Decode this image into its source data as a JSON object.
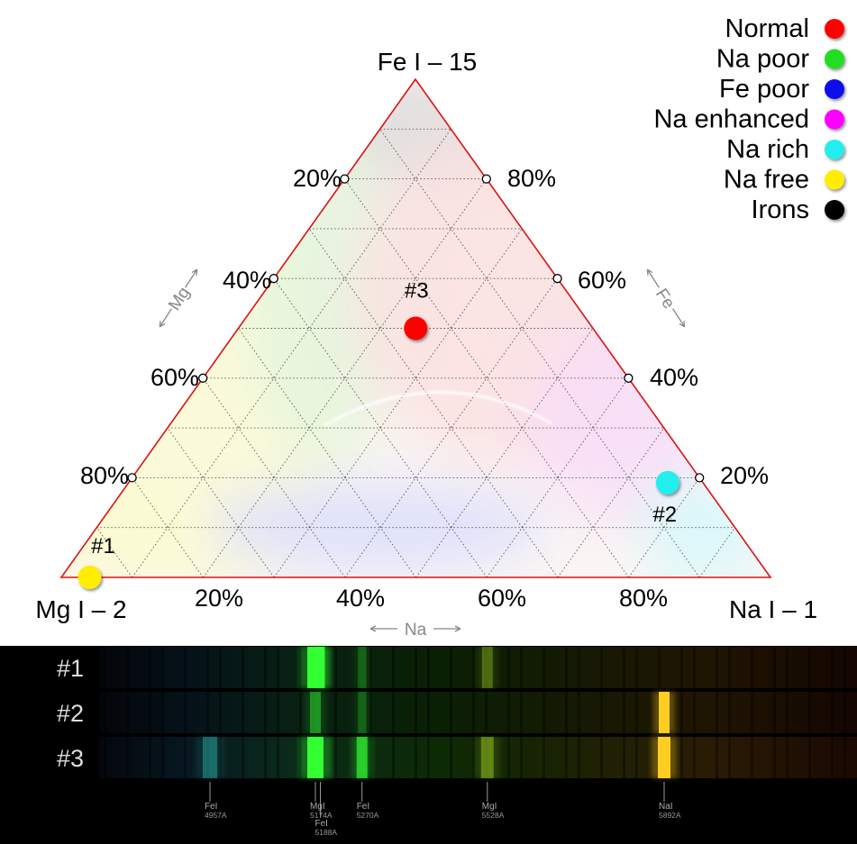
{
  "diagram": {
    "vertices": {
      "top": "Fe I – 15",
      "left": "Mg I – 2",
      "right": "Na I – 1"
    },
    "axes": {
      "mg": "Mg",
      "fe": "Fe",
      "na": "Na"
    },
    "tick_labels": {
      "left_edge": [
        "20%",
        "40%",
        "60%",
        "80%"
      ],
      "right_edge": [
        "80%",
        "60%",
        "40%",
        "20%"
      ],
      "bottom_edge": [
        "20%",
        "40%",
        "60%",
        "80%"
      ]
    }
  },
  "legend": [
    {
      "label": "Normal",
      "color": "#ff0000"
    },
    {
      "label": "Na poor",
      "color": "#22dd22"
    },
    {
      "label": "Fe poor",
      "color": "#1111ee"
    },
    {
      "label": "Na enhanced",
      "color": "#ff00ff"
    },
    {
      "label": "Na rich",
      "color": "#22eeee"
    },
    {
      "label": "Na free",
      "color": "#ffee00"
    },
    {
      "label": "Irons",
      "color": "#000000"
    }
  ],
  "points": [
    {
      "label": "#1",
      "mg": 0.96,
      "na": 0.04,
      "fe": 0.0,
      "color": "#ffee00"
    },
    {
      "label": "#2",
      "mg": 0.05,
      "na": 0.76,
      "fe": 0.19,
      "color": "#22eeee"
    },
    {
      "label": "#3",
      "mg": 0.25,
      "na": 0.25,
      "fe": 0.5,
      "color": "#ff0000"
    }
  ],
  "spectra": {
    "rows": [
      {
        "label": "#1",
        "lines": [
          {
            "wl": 5174,
            "intensity": 1.0,
            "width": 18
          },
          {
            "wl": 5188,
            "intensity": 0.9,
            "width": 6
          },
          {
            "wl": 5270,
            "intensity": 0.25,
            "width": 10
          },
          {
            "wl": 5528,
            "intensity": 0.35,
            "width": 12
          }
        ]
      },
      {
        "label": "#2",
        "lines": [
          {
            "wl": 5174,
            "intensity": 0.45,
            "width": 12
          },
          {
            "wl": 5270,
            "intensity": 0.25,
            "width": 10
          },
          {
            "wl": 5892,
            "intensity": 1.0,
            "width": 12
          }
        ]
      },
      {
        "label": "#3",
        "lines": [
          {
            "wl": 4957,
            "intensity": 0.35,
            "width": 16
          },
          {
            "wl": 5174,
            "intensity": 1.0,
            "width": 18
          },
          {
            "wl": 5270,
            "intensity": 0.7,
            "width": 12
          },
          {
            "wl": 5528,
            "intensity": 0.45,
            "width": 14
          },
          {
            "wl": 5892,
            "intensity": 1.0,
            "width": 14
          }
        ]
      }
    ],
    "markers": [
      {
        "wl": 4957,
        "name": "FeI",
        "value": "4957A"
      },
      {
        "wl": 5174,
        "name": "MgI",
        "value": "5174A"
      },
      {
        "wl": 5188,
        "name": "FeI",
        "value": "5188A"
      },
      {
        "wl": 5270,
        "name": "FeI",
        "value": "5270A"
      },
      {
        "wl": 5528,
        "name": "MgI",
        "value": "5528A"
      },
      {
        "wl": 5892,
        "name": "NaI",
        "value": "5892A"
      }
    ]
  }
}
